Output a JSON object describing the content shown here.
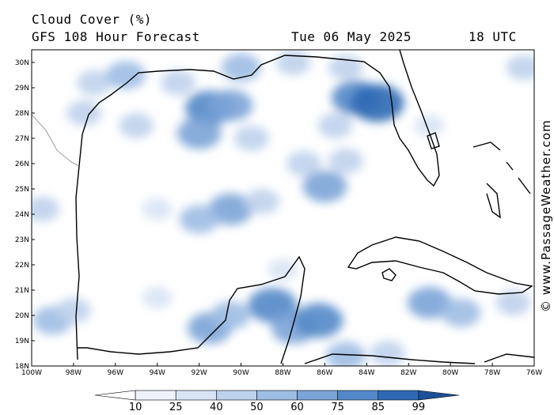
{
  "header": {
    "title": "Cloud Cover (%)",
    "model": "GFS 108 Hour Forecast",
    "date": "Tue 06 May 2025",
    "time": "18 UTC"
  },
  "axes": {
    "lat_labels": [
      "30N",
      "29N",
      "28N",
      "27N",
      "26N",
      "25N",
      "24N",
      "23N",
      "22N",
      "21N",
      "20N",
      "19N",
      "18N"
    ],
    "lon_labels": [
      "100W",
      "98W",
      "96W",
      "94W",
      "92W",
      "90W",
      "88W",
      "86W",
      "84W",
      "82W",
      "80W",
      "78W",
      "76W"
    ]
  },
  "colorbar": {
    "labels": [
      "10",
      "25",
      "40",
      "50",
      "60",
      "75",
      "85",
      "99"
    ],
    "colors": [
      "#ffffff",
      "#eef3fb",
      "#d8e4f4",
      "#bfd2ec",
      "#9dbde3",
      "#7ba4d7",
      "#5388c8",
      "#2f69b4",
      "#1e4f96"
    ]
  },
  "credit": "© www.PassageWeather.com",
  "cloud_cells": [
    {
      "lon": -97.0,
      "lat": 29.2,
      "level": 2
    },
    {
      "lon": -95.5,
      "lat": 29.5,
      "level": 3
    },
    {
      "lon": -93.0,
      "lat": 29.2,
      "level": 2
    },
    {
      "lon": -91.5,
      "lat": 28.2,
      "level": 5
    },
    {
      "lon": -90.5,
      "lat": 28.3,
      "level": 4
    },
    {
      "lon": -92.0,
      "lat": 27.2,
      "level": 4
    },
    {
      "lon": -89.5,
      "lat": 27.0,
      "level": 2
    },
    {
      "lon": -95.0,
      "lat": 27.5,
      "level": 2
    },
    {
      "lon": -90.0,
      "lat": 29.8,
      "level": 3
    },
    {
      "lon": -87.5,
      "lat": 30.0,
      "level": 2
    },
    {
      "lon": -85.0,
      "lat": 29.8,
      "level": 2
    },
    {
      "lon": -84.5,
      "lat": 28.6,
      "level": 5
    },
    {
      "lon": -83.5,
      "lat": 28.4,
      "level": 6
    },
    {
      "lon": -85.5,
      "lat": 27.5,
      "level": 2
    },
    {
      "lon": -86.0,
      "lat": 25.1,
      "level": 4
    },
    {
      "lon": -87.0,
      "lat": 26.0,
      "level": 2
    },
    {
      "lon": -85.0,
      "lat": 26.1,
      "level": 2
    },
    {
      "lon": -90.5,
      "lat": 24.2,
      "level": 4
    },
    {
      "lon": -92.0,
      "lat": 23.8,
      "level": 3
    },
    {
      "lon": -89.0,
      "lat": 24.5,
      "level": 2
    },
    {
      "lon": -99.5,
      "lat": 24.2,
      "level": 2
    },
    {
      "lon": -94.0,
      "lat": 24.2,
      "level": 1
    },
    {
      "lon": -91.5,
      "lat": 19.5,
      "level": 4
    },
    {
      "lon": -90.5,
      "lat": 20.0,
      "level": 3
    },
    {
      "lon": -88.5,
      "lat": 20.4,
      "level": 5
    },
    {
      "lon": -87.5,
      "lat": 19.5,
      "level": 4
    },
    {
      "lon": -86.3,
      "lat": 19.8,
      "level": 5
    },
    {
      "lon": -85.0,
      "lat": 18.4,
      "level": 3
    },
    {
      "lon": -83.0,
      "lat": 18.5,
      "level": 2
    },
    {
      "lon": -81.0,
      "lat": 20.5,
      "level": 4
    },
    {
      "lon": -79.5,
      "lat": 20.1,
      "level": 3
    },
    {
      "lon": -77.0,
      "lat": 20.5,
      "level": 2
    },
    {
      "lon": -99.0,
      "lat": 19.8,
      "level": 3
    },
    {
      "lon": -98.0,
      "lat": 20.2,
      "level": 2
    },
    {
      "lon": -94.0,
      "lat": 20.7,
      "level": 1
    },
    {
      "lon": -76.5,
      "lat": 29.8,
      "level": 2
    },
    {
      "lon": -97.5,
      "lat": 28.0,
      "level": 2
    },
    {
      "lon": -81.0,
      "lat": 27.5,
      "level": 1
    },
    {
      "lon": -88.0,
      "lat": 21.8,
      "level": 1
    }
  ]
}
